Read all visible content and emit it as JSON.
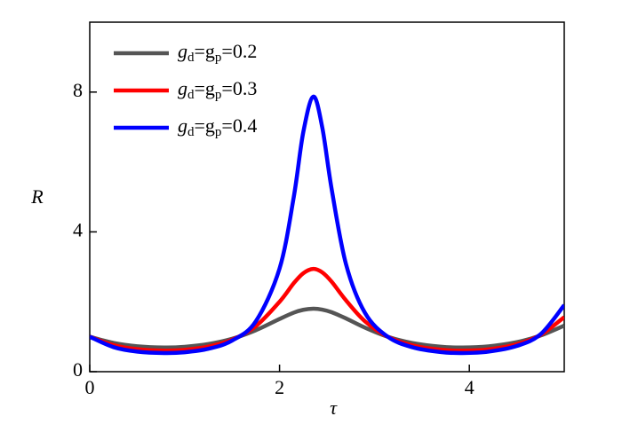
{
  "chart_data": {
    "type": "line",
    "x_label": "τ",
    "y_label": "R",
    "x": [
      0,
      0.25,
      0.5,
      0.785,
      1.0,
      1.25,
      1.5,
      1.75,
      2.0,
      2.15,
      2.25,
      2.356,
      2.45,
      2.55,
      2.7,
      2.9,
      3.14,
      3.4,
      3.7,
      3.927,
      4.2,
      4.5,
      4.75,
      5.0
    ],
    "series": [
      {
        "name": "gd=gp=0.2",
        "color": "#555555",
        "values": [
          1,
          0.824,
          0.728,
          0.692,
          0.712,
          0.79,
          0.941,
          1.185,
          1.508,
          1.689,
          1.77,
          1.802,
          1.776,
          1.701,
          1.524,
          1.261,
          1,
          0.82,
          0.714,
          0.692,
          0.725,
          0.845,
          1.034,
          1.319
        ]
      },
      {
        "name": "gd=gp=0.3",
        "color": "#ff0000",
        "values": [
          1,
          0.76,
          0.643,
          0.602,
          0.625,
          0.717,
          0.915,
          1.302,
          2.0,
          2.532,
          2.817,
          2.941,
          2.841,
          2.571,
          2.041,
          1.443,
          1,
          0.754,
          0.628,
          0.602,
          0.639,
          0.786,
          1.052,
          1.56
        ]
      },
      {
        "name": "gd=gp=0.4",
        "color": "#0000ff",
        "values": [
          1,
          0.703,
          0.575,
          0.534,
          0.556,
          0.655,
          0.89,
          1.441,
          2.95,
          5.0,
          6.85,
          7.87,
          6.99,
          5.21,
          3.08,
          1.684,
          1,
          0.699,
          0.56,
          0.534,
          0.573,
          0.735,
          1.07,
          1.905
        ]
      }
    ],
    "xlim": [
      0,
      5
    ],
    "ylim": [
      0,
      10
    ],
    "xticks": [
      0,
      2,
      4
    ],
    "yticks": [
      0,
      4,
      8
    ],
    "legend": "upper-left"
  }
}
